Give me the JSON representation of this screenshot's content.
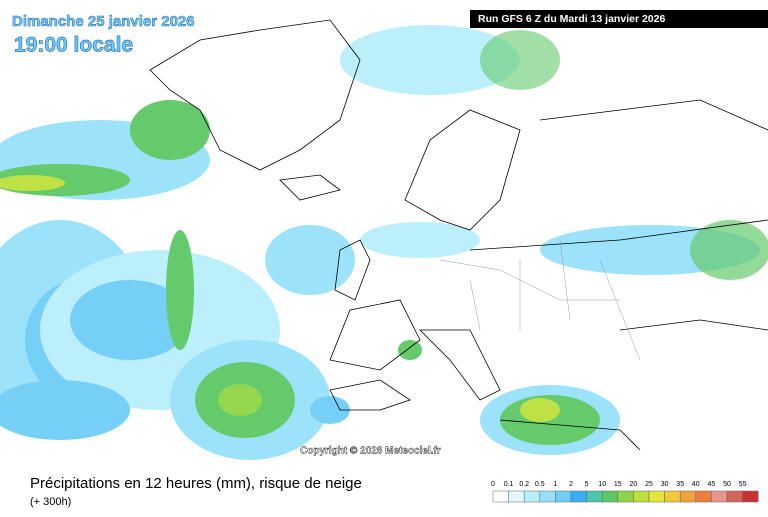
{
  "header": {
    "date": "Dimanche 25 janvier 2026",
    "time": "19:00 locale",
    "run": "Run GFS 6 Z du Mardi 13 janvier 2026"
  },
  "copyright": "Copyright © 2026 Meteociel.fr",
  "footer": {
    "title": "Précipitations en 12 heures (mm), risque de neige",
    "lead": "(+ 300h)"
  },
  "legend": [
    {
      "label": "0",
      "color": "#ffffff"
    },
    {
      "label": "0.1",
      "color": "#e1f9ff"
    },
    {
      "label": "0.2",
      "color": "#b9effc"
    },
    {
      "label": "0.5",
      "color": "#96e1fa"
    },
    {
      "label": "1",
      "color": "#6fcdf7"
    },
    {
      "label": "2",
      "color": "#3aaef2"
    },
    {
      "label": "5",
      "color": "#48c8a8"
    },
    {
      "label": "10",
      "color": "#5cc865"
    },
    {
      "label": "15",
      "color": "#8fd444"
    },
    {
      "label": "20",
      "color": "#bde03c"
    },
    {
      "label": "25",
      "color": "#e6e63a"
    },
    {
      "label": "30",
      "color": "#f0c83a"
    },
    {
      "label": "35",
      "color": "#f0a23a"
    },
    {
      "label": "40",
      "color": "#ee7e3e"
    },
    {
      "label": "45",
      "color": "#e6968c"
    },
    {
      "label": "50",
      "color": "#d2645a"
    },
    {
      "label": "55",
      "color": "#c83232"
    }
  ]
}
